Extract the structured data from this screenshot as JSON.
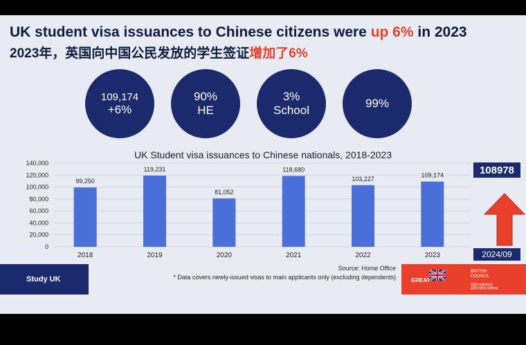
{
  "header": {
    "title_part1": "UK student visa issuances to Chinese citizens were ",
    "title_highlight": "up 6%",
    "title_part2": " in 2023",
    "subtitle_part1": "2023年，英国向中国公民发放的学生签证",
    "subtitle_highlight": "增加了6%"
  },
  "stats": [
    {
      "line1": "109,174",
      "line2": "+6%"
    },
    {
      "line1": "90%",
      "line2": "HE"
    },
    {
      "line1": "3%",
      "line2": "School"
    },
    {
      "line1": "99%",
      "line2": ""
    }
  ],
  "colors": {
    "navy": "#1a2a6c",
    "bar": "#4a6fd8",
    "accent": "#e8402a"
  },
  "chart_data": {
    "type": "bar",
    "title": "UK Student visa issuances to Chinese nationals, 2018-2023",
    "categories": [
      "2018",
      "2019",
      "2020",
      "2021",
      "2022",
      "2023"
    ],
    "values": [
      99250,
      119231,
      81052,
      118680,
      103227,
      109174
    ],
    "value_labels": [
      "99,250",
      "119,231",
      "81,052",
      "118,680",
      "103,227",
      "109,174"
    ],
    "ylim": [
      0,
      140000
    ],
    "yticks": [
      "0",
      "20,000",
      "40,000",
      "60,000",
      "80,000",
      "100,000",
      "120,000",
      "140,000"
    ],
    "grid": true,
    "annotation": {
      "value": "108978",
      "label": "2024/09"
    }
  },
  "footer": {
    "study_uk": "Study UK",
    "source": "Source: Home Office",
    "note": "* Data covers newly-issued visas to main applicants only (excluding dependents)",
    "great": "GREAT",
    "bc_name": "BRITISH\nCOUNCIL",
    "bc_sub": "英国文化教育协会\n英国大使馆文化教育处"
  }
}
